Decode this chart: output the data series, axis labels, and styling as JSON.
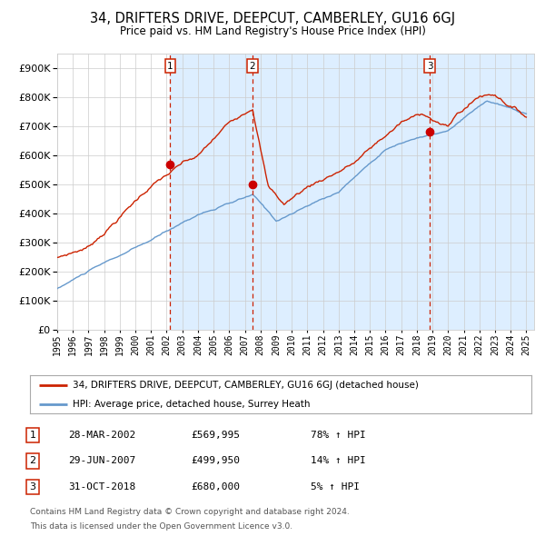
{
  "title": "34, DRIFTERS DRIVE, DEEPCUT, CAMBERLEY, GU16 6GJ",
  "subtitle": "Price paid vs. HM Land Registry's House Price Index (HPI)",
  "legend_line1": "34, DRIFTERS DRIVE, DEEPCUT, CAMBERLEY, GU16 6GJ (detached house)",
  "legend_line2": "HPI: Average price, detached house, Surrey Heath",
  "transactions": [
    {
      "num": 1,
      "date": "28-MAR-2002",
      "price": 569995,
      "hpi_pct": "78%",
      "year_x": 2002.23
    },
    {
      "num": 2,
      "date": "29-JUN-2007",
      "price": 499950,
      "hpi_pct": "14%",
      "year_x": 2007.49
    },
    {
      "num": 3,
      "date": "31-OCT-2018",
      "price": 680000,
      "hpi_pct": "5%",
      "year_x": 2018.83
    }
  ],
  "footnote1": "Contains HM Land Registry data © Crown copyright and database right 2024.",
  "footnote2": "This data is licensed under the Open Government Licence v3.0.",
  "hpi_color": "#6699cc",
  "price_color": "#cc2200",
  "dot_color": "#cc0000",
  "vline_color": "#cc2200",
  "shade_color": "#ddeeff",
  "grid_color": "#cccccc",
  "background_color": "#ffffff",
  "ylim": [
    0,
    950000
  ],
  "yticks": [
    0,
    100000,
    200000,
    300000,
    400000,
    500000,
    600000,
    700000,
    800000,
    900000
  ],
  "xlim_start": 1995.0,
  "xlim_end": 2025.5
}
